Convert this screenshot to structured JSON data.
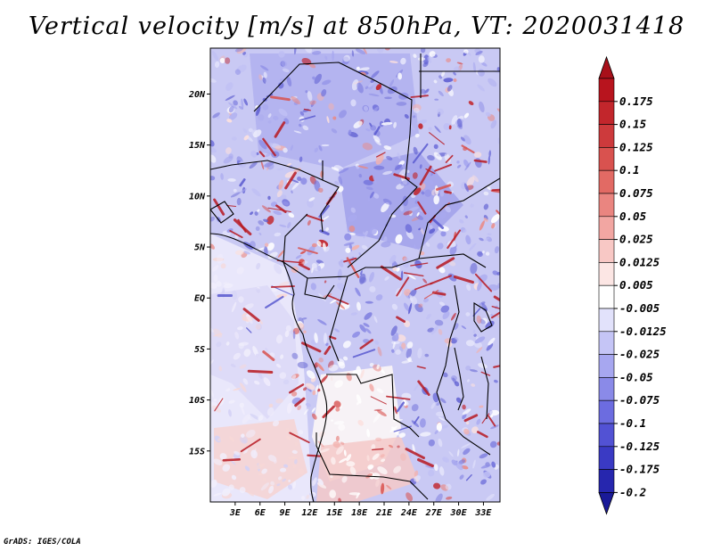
{
  "title": "Vertical velocity [m/s] at 850hPa, VT: 2020031418",
  "credit": "GrADS: IGES/COLA",
  "map": {
    "variable": "Vertical velocity",
    "units": "m/s",
    "level": "850hPa",
    "valid_time": "2020031418",
    "lon_range": [
      0,
      35
    ],
    "lat_range": [
      -20,
      24.5
    ],
    "lat_labels": [
      {
        "text": "20N",
        "lat": 20
      },
      {
        "text": "15N",
        "lat": 15
      },
      {
        "text": "10N",
        "lat": 10
      },
      {
        "text": "5N",
        "lat": 5
      },
      {
        "text": "EQ",
        "lat": 0
      },
      {
        "text": "5S",
        "lat": -5
      },
      {
        "text": "10S",
        "lat": -10
      },
      {
        "text": "15S",
        "lat": -15
      }
    ],
    "lon_labels": [
      {
        "text": "3E",
        "lon": 3
      },
      {
        "text": "6E",
        "lon": 6
      },
      {
        "text": "9E",
        "lon": 9
      },
      {
        "text": "12E",
        "lon": 12
      },
      {
        "text": "15E",
        "lon": 15
      },
      {
        "text": "18E",
        "lon": 18
      },
      {
        "text": "21E",
        "lon": 21
      },
      {
        "text": "24E",
        "lon": 24
      },
      {
        "text": "27E",
        "lon": 27
      },
      {
        "text": "30E",
        "lon": 30
      },
      {
        "text": "33E",
        "lon": 33
      }
    ]
  },
  "colorbar": {
    "levels": [
      {
        "label": "0.175",
        "color": "#b8141e"
      },
      {
        "label": "0.15",
        "color": "#c2262c"
      },
      {
        "label": "0.125",
        "color": "#cd3a3c"
      },
      {
        "label": "0.1",
        "color": "#d9524f"
      },
      {
        "label": "0.075",
        "color": "#e26a64"
      },
      {
        "label": "0.05",
        "color": "#ea8580"
      },
      {
        "label": "0.025",
        "color": "#f2a6a2"
      },
      {
        "label": "0.0125",
        "color": "#f8c8c5"
      },
      {
        "label": "0.005",
        "color": "#fce6e4"
      },
      {
        "label": "-0.005",
        "color": "#ffffff"
      },
      {
        "label": "-0.0125",
        "color": "#e2e2fb"
      },
      {
        "label": "-0.025",
        "color": "#c5c5f6"
      },
      {
        "label": "-0.05",
        "color": "#a7a7f0"
      },
      {
        "label": "-0.075",
        "color": "#8a8ae8"
      },
      {
        "label": "-0.1",
        "color": "#6c6ce0"
      },
      {
        "label": "-0.125",
        "color": "#5252d4"
      },
      {
        "label": "-0.175",
        "color": "#3a3ac4"
      },
      {
        "label": "-0.2",
        "color": "#2626ae"
      }
    ],
    "top_color": "#a8101a",
    "bottom_color": "#1a1a98"
  }
}
